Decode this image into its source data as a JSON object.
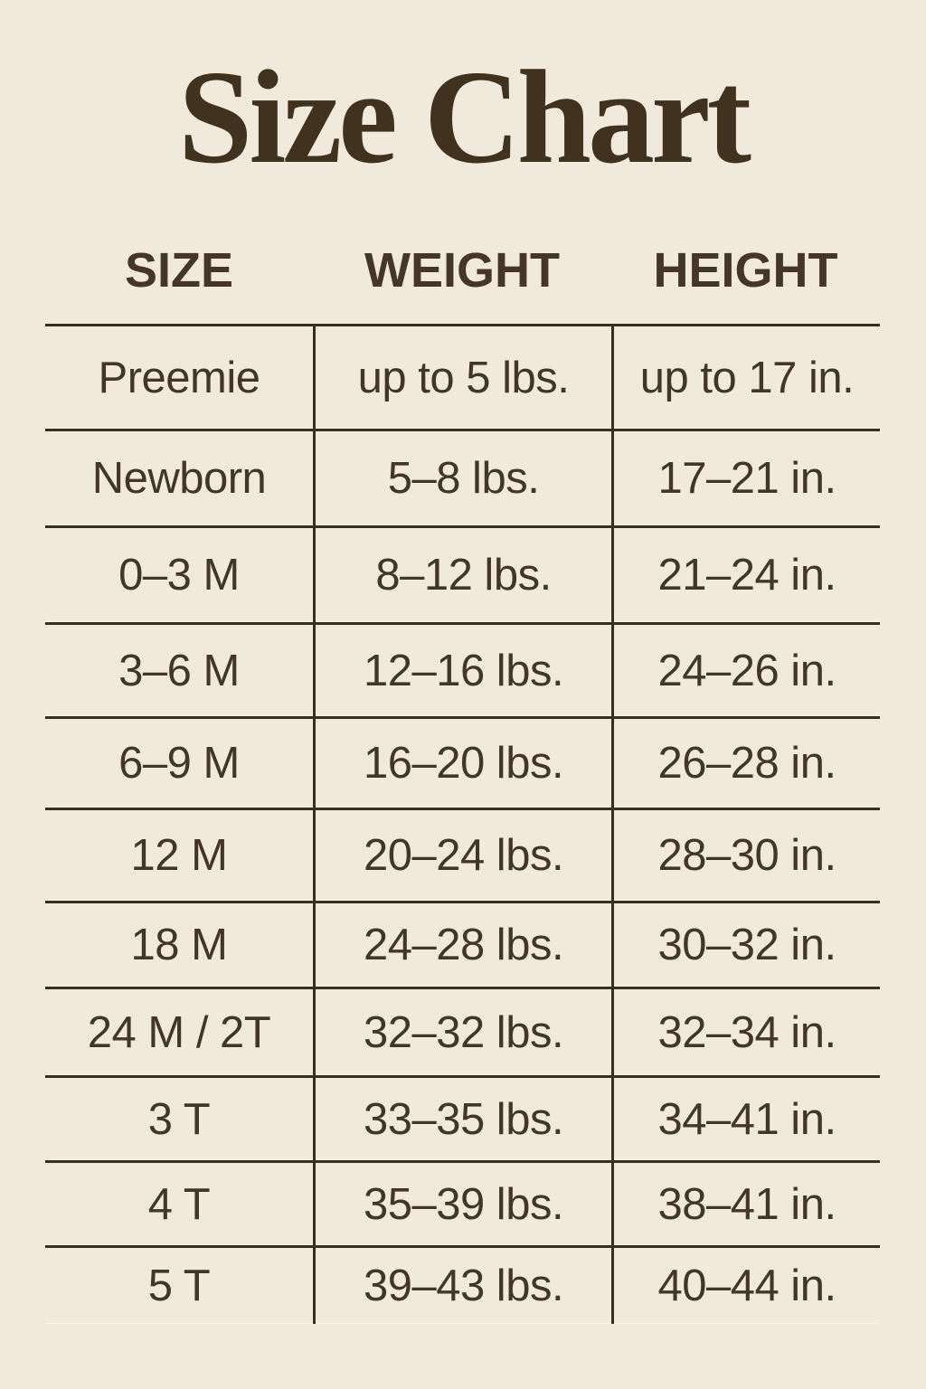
{
  "title": "Size Chart",
  "colors": {
    "background": "#f1e9dc",
    "title_text": "#40321f",
    "body_text": "#443627",
    "grid_line": "#382e20"
  },
  "table": {
    "headers": [
      "SIZE",
      "WEIGHT",
      "HEIGHT"
    ],
    "rows": [
      {
        "size": "Preemie",
        "weight": "up to 5 lbs.",
        "height": "up to 17 in."
      },
      {
        "size": "Newborn",
        "weight": "5–8 lbs.",
        "height": "17–21 in."
      },
      {
        "size": "0–3 M",
        "weight": "8–12 lbs.",
        "height": "21–24 in."
      },
      {
        "size": "3–6 M",
        "weight": "12–16 lbs.",
        "height": "24–26 in."
      },
      {
        "size": "6–9 M",
        "weight": "16–20 lbs.",
        "height": "26–28 in."
      },
      {
        "size": "12 M",
        "weight": "20–24 lbs.",
        "height": "28–30 in."
      },
      {
        "size": "18 M",
        "weight": "24–28 lbs.",
        "height": "30–32 in."
      },
      {
        "size": "24 M / 2T",
        "weight": "32–32 lbs.",
        "height": "32–34 in."
      },
      {
        "size": "3 T",
        "weight": "33–35 lbs.",
        "height": "34–41 in."
      },
      {
        "size": "4 T",
        "weight": "35–39 lbs.",
        "height": "38–41 in."
      },
      {
        "size": "5 T",
        "weight": "39–43 lbs.",
        "height": "40–44 in."
      }
    ]
  }
}
